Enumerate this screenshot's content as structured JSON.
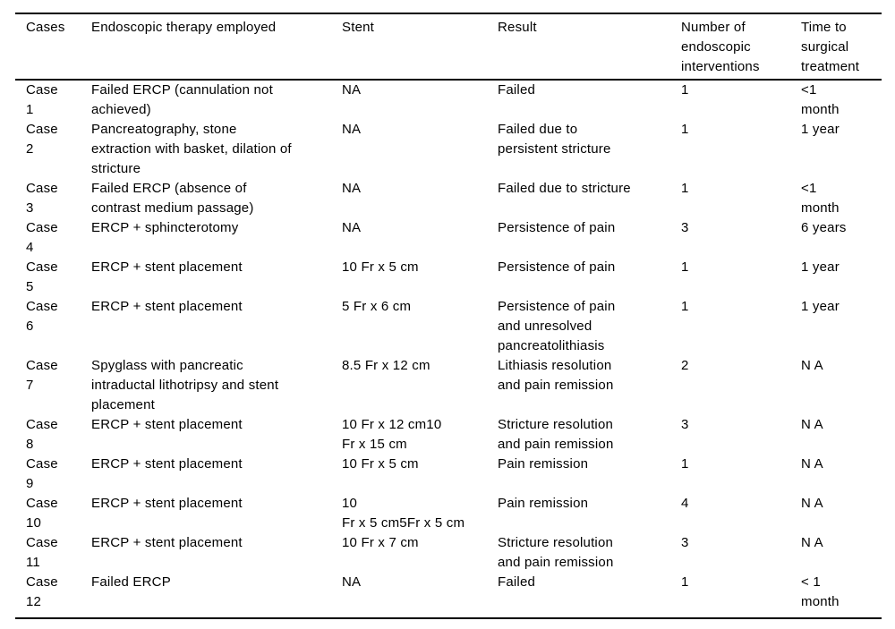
{
  "table": {
    "headers": [
      "Cases",
      "Endoscopic therapy employed",
      "Stent",
      "Result",
      "Number of\nendoscopic\ninterventions",
      "Time to\nsurgical\ntreatment"
    ],
    "rows": [
      [
        "Case\n1",
        "Failed ERCP (cannulation not\nachieved)",
        "NA",
        "Failed",
        "1",
        "<1\nmonth"
      ],
      [
        "Case\n2",
        "Pancreatography, stone\nextraction with basket, dilation of\nstricture",
        "NA",
        "Failed due to\npersistent stricture",
        "1",
        "1 year"
      ],
      [
        "Case\n3",
        "Failed ERCP (absence of\ncontrast medium passage)",
        "NA",
        "Failed due to stricture",
        "1",
        "<1\nmonth"
      ],
      [
        "Case\n4",
        "ERCP + sphincterotomy",
        "NA",
        "Persistence of pain",
        "3",
        "6 years"
      ],
      [
        "Case\n5",
        "ERCP + stent placement",
        "10 Fr x 5 cm",
        "Persistence of pain",
        "1",
        "1 year"
      ],
      [
        "Case\n6",
        "ERCP + stent placement",
        "5 Fr x 6 cm",
        "Persistence of pain\nand unresolved\npancreatolithiasis",
        "1",
        "1 year"
      ],
      [
        "Case\n7",
        "Spyglass with pancreatic\nintraductal lithotripsy and stent\nplacement",
        "8.5 Fr x 12 cm",
        "Lithiasis resolution\nand pain remission",
        "2",
        "N A"
      ],
      [
        "Case\n8",
        "ERCP + stent placement",
        "10 Fr x 12 cm10\nFr x 15 cm",
        "Stricture resolution\nand pain remission",
        "3",
        "N A"
      ],
      [
        "Case\n9",
        "ERCP + stent placement",
        "10 Fr x 5 cm",
        "Pain remission",
        "1",
        "N A"
      ],
      [
        "Case\n10",
        "ERCP + stent placement",
        "10\nFr x 5 cm5Fr x 5 cm",
        "Pain remission",
        "4",
        "N A"
      ],
      [
        "Case\n11",
        "ERCP + stent placement",
        "10 Fr x 7 cm",
        "Stricture resolution\nand pain remission",
        "3",
        "N A"
      ],
      [
        "Case\n12",
        "Failed ERCP",
        "NA",
        "Failed",
        "1",
        "< 1\nmonth"
      ]
    ]
  }
}
